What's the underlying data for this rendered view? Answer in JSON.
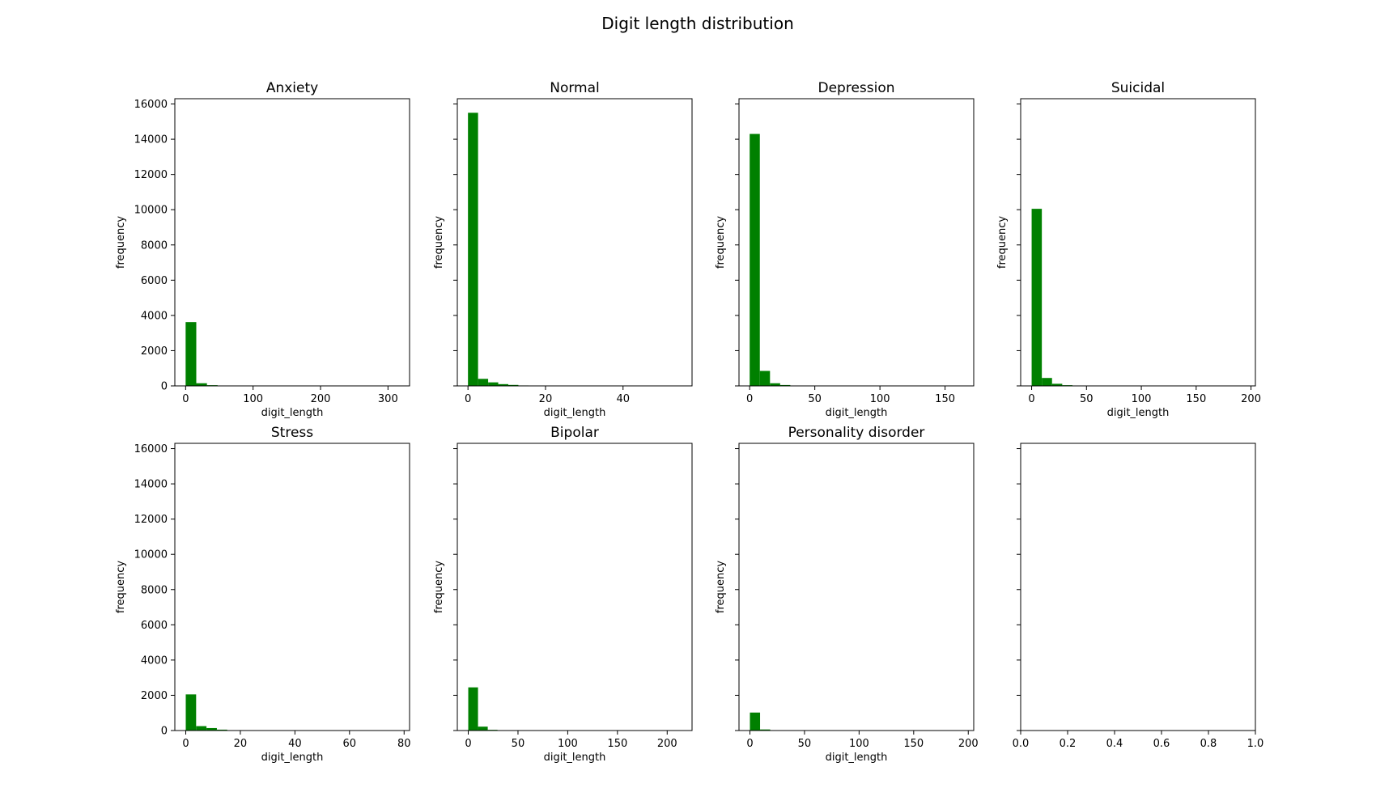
{
  "chart_data": {
    "title": "Digit length distribution",
    "type": "bar",
    "bar_color": "#008000",
    "shared_y": true,
    "ylim": [
      0,
      16300
    ],
    "yticks": [
      0,
      2000,
      4000,
      6000,
      8000,
      10000,
      12000,
      14000,
      16000
    ],
    "subplots": [
      {
        "title": "Anxiety",
        "xlabel": "digit_length",
        "ylabel": "frequency",
        "xlim": [
          -16,
          332
        ],
        "xticks": [
          0,
          100,
          200,
          300
        ],
        "bin_width": 15.8,
        "bins": [
          0,
          15.8,
          31.6,
          47.4,
          63.2
        ],
        "counts": [
          3620,
          150,
          40,
          15,
          5
        ]
      },
      {
        "title": "Normal",
        "xlabel": "digit_length",
        "ylabel": "frequency",
        "xlim": [
          -2.75,
          57.8
        ],
        "xticks": [
          0,
          20,
          40
        ],
        "bin_width": 2.6,
        "bins": [
          0,
          2.6,
          5.2,
          7.8,
          10.4,
          13.0,
          15.6,
          18.2
        ],
        "counts": [
          15500,
          400,
          200,
          100,
          55,
          25,
          10,
          5
        ]
      },
      {
        "title": "Depression",
        "xlabel": "digit_length",
        "ylabel": "frequency",
        "xlim": [
          -8.2,
          172
        ],
        "xticks": [
          0,
          50,
          100,
          150
        ],
        "bin_width": 7.8,
        "bins": [
          0,
          7.8,
          15.6,
          23.4,
          31.2
        ],
        "counts": [
          14300,
          850,
          150,
          50,
          10
        ]
      },
      {
        "title": "Suicidal",
        "xlabel": "digit_length",
        "ylabel": "frequency",
        "xlim": [
          -10,
          204
        ],
        "xticks": [
          0,
          50,
          100,
          150,
          200
        ],
        "bin_width": 9.3,
        "bins": [
          0,
          9.3,
          18.6,
          27.9,
          37.2
        ],
        "counts": [
          10050,
          450,
          120,
          40,
          10
        ]
      },
      {
        "title": "Stress",
        "xlabel": "digit_length",
        "ylabel": "frequency",
        "xlim": [
          -4,
          82
        ],
        "xticks": [
          0,
          20,
          40,
          60,
          80
        ],
        "bin_width": 3.8,
        "bins": [
          0,
          3.8,
          7.6,
          11.4,
          15.2,
          19.0
        ],
        "counts": [
          2050,
          250,
          140,
          50,
          20,
          5
        ]
      },
      {
        "title": "Bipolar",
        "xlabel": "digit_length",
        "ylabel": "frequency",
        "xlim": [
          -11,
          225
        ],
        "xticks": [
          0,
          50,
          100,
          150,
          200
        ],
        "bin_width": 9.8,
        "bins": [
          0,
          9.8,
          19.6,
          29.4
        ],
        "counts": [
          2450,
          220,
          40,
          10
        ]
      },
      {
        "title": "Personality disorder",
        "xlabel": "digit_length",
        "ylabel": "frequency",
        "xlim": [
          -10,
          205
        ],
        "xticks": [
          0,
          50,
          100,
          150,
          200
        ],
        "bin_width": 9.3,
        "bins": [
          0,
          9.3,
          18.6
        ],
        "counts": [
          1020,
          60,
          10
        ]
      },
      {
        "title": "",
        "xlabel": "",
        "ylabel": "",
        "xlim": [
          0,
          1
        ],
        "xticks": [
          0.0,
          0.2,
          0.4,
          0.6,
          0.8,
          1.0
        ],
        "xtick_labels": [
          "0.0",
          "0.2",
          "0.4",
          "0.6",
          "0.8",
          "1.0"
        ],
        "bins": [],
        "counts": []
      }
    ]
  }
}
